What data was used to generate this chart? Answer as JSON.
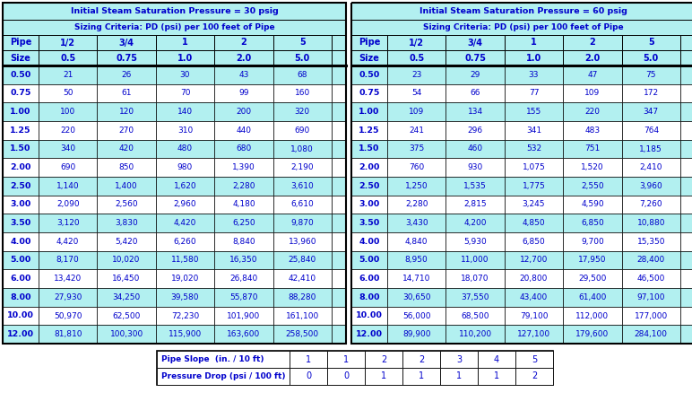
{
  "table1_title": "Initial Steam Saturation Pressure = 30 psig",
  "table2_title": "Initial Steam Saturation Pressure = 60 psig",
  "subtitle": "Sizing Criteria: PD (psi) per 100 feet of Pipe",
  "col_headers1": [
    "1/2",
    "3/4",
    "1",
    "2",
    "5"
  ],
  "col_headers2": [
    "0.5",
    "0.75",
    "1.0",
    "2.0",
    "5.0"
  ],
  "pipe_sizes": [
    "0.50",
    "0.75",
    "1.00",
    "1.25",
    "1.50",
    "2.00",
    "2.50",
    "3.00",
    "3.50",
    "4.00",
    "5.00",
    "6.00",
    "8.00",
    "10.00",
    "12.00"
  ],
  "data30": [
    [
      21,
      26,
      30,
      43,
      68
    ],
    [
      50,
      61,
      70,
      99,
      160
    ],
    [
      100,
      120,
      140,
      200,
      320
    ],
    [
      220,
      270,
      310,
      440,
      690
    ],
    [
      340,
      420,
      480,
      680,
      1080
    ],
    [
      690,
      850,
      980,
      1390,
      2190
    ],
    [
      1140,
      1400,
      1620,
      2280,
      3610
    ],
    [
      2090,
      2560,
      2960,
      4180,
      6610
    ],
    [
      3120,
      3830,
      4420,
      6250,
      9870
    ],
    [
      4420,
      5420,
      6260,
      8840,
      13960
    ],
    [
      8170,
      10020,
      11580,
      16350,
      25840
    ],
    [
      13420,
      16450,
      19020,
      26840,
      42410
    ],
    [
      27930,
      34250,
      39580,
      55870,
      88280
    ],
    [
      50970,
      62500,
      72230,
      101900,
      161100
    ],
    [
      81810,
      100300,
      115900,
      163600,
      258500
    ]
  ],
  "data60": [
    [
      23,
      29,
      33,
      47,
      75
    ],
    [
      54,
      66,
      77,
      109,
      172
    ],
    [
      109,
      134,
      155,
      220,
      347
    ],
    [
      241,
      296,
      341,
      483,
      764
    ],
    [
      375,
      460,
      532,
      751,
      1185
    ],
    [
      760,
      930,
      1075,
      1520,
      2410
    ],
    [
      1250,
      1535,
      1775,
      2550,
      3960
    ],
    [
      2280,
      2815,
      3245,
      4590,
      7260
    ],
    [
      3430,
      4200,
      4850,
      6850,
      10880
    ],
    [
      4840,
      5930,
      6850,
      9700,
      15350
    ],
    [
      8950,
      11000,
      12700,
      17950,
      28400
    ],
    [
      14710,
      18070,
      20800,
      29500,
      46500
    ],
    [
      30650,
      37550,
      43400,
      61400,
      97100
    ],
    [
      56000,
      68500,
      79100,
      112000,
      177000
    ],
    [
      89900,
      110200,
      127100,
      179600,
      284100
    ]
  ],
  "bottom_labels": [
    "Pipe Slope  (in. / 10 ft)",
    "Pressure Drop (psi / 100 ft)"
  ],
  "pipe_slope": [
    "1",
    "1",
    "2",
    "2",
    "3",
    "4",
    "5"
  ],
  "pressure_drop": [
    "0",
    "0",
    "1",
    "1",
    "1",
    "1",
    "2"
  ],
  "header_bg": "#b2f0f0",
  "data_text_color": "#0000cc",
  "header_text_color": "#0000cc",
  "border_color": "#000000"
}
